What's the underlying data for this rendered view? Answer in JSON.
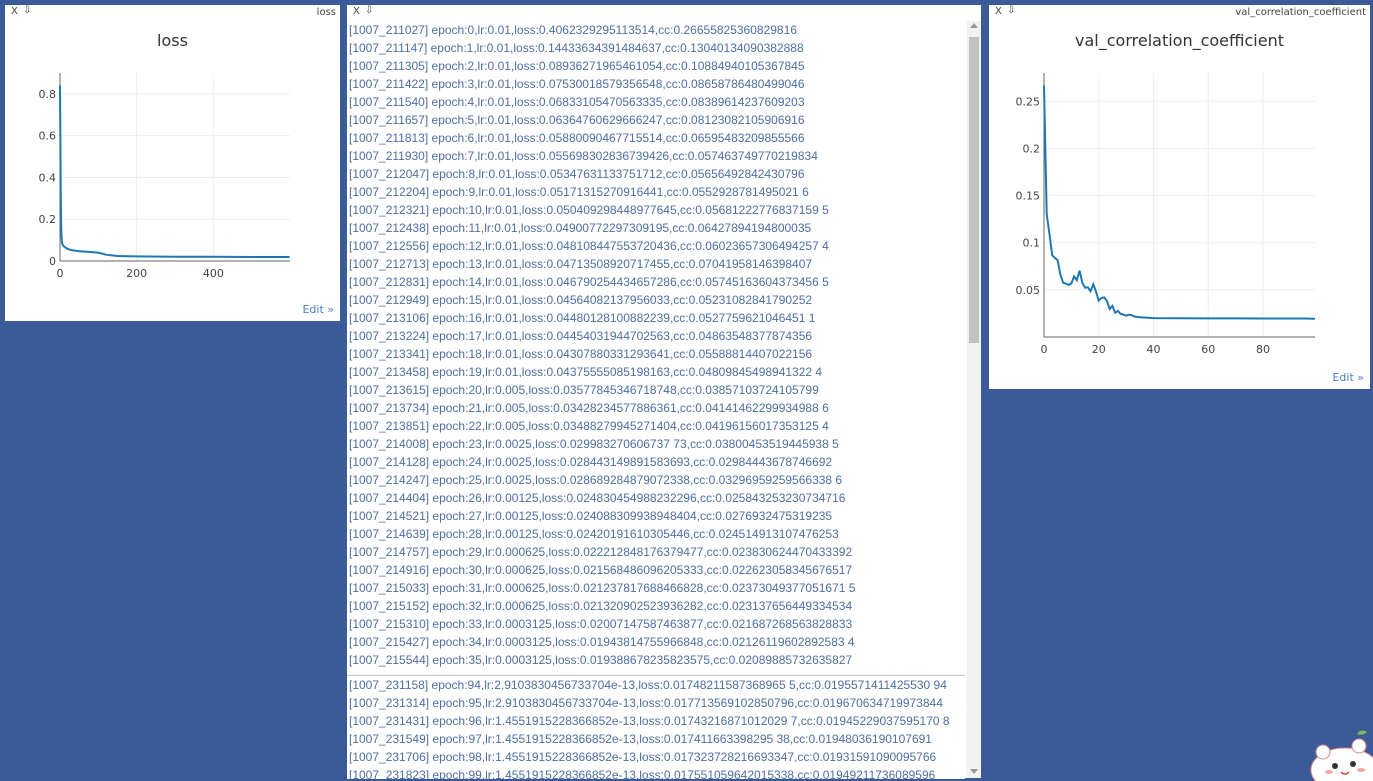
{
  "panes": {
    "close_glyph": "X",
    "pin_glyph": "⇩",
    "edit_label": "Edit »"
  },
  "loss_pane": {
    "name": "loss"
  },
  "val_pane": {
    "name": "val_correlation_coefficient"
  },
  "charts": {
    "chart_data": [
      {
        "type": "line",
        "title": "loss",
        "xlabel": "",
        "ylabel": "",
        "xlim": [
          0,
          600
        ],
        "ylim": [
          0,
          0.9
        ],
        "xticks": [
          0,
          200,
          400
        ],
        "yticks": [
          0,
          0.2,
          0.4,
          0.6,
          0.8
        ],
        "x": [
          0,
          1,
          2,
          3,
          4,
          5,
          6,
          8,
          10,
          15,
          20,
          30,
          50,
          80,
          100,
          120,
          150,
          200,
          300,
          400,
          500,
          599
        ],
        "y": [
          0.84,
          0.55,
          0.3,
          0.18,
          0.12,
          0.095,
          0.082,
          0.075,
          0.07,
          0.063,
          0.058,
          0.052,
          0.047,
          0.043,
          0.04,
          0.03,
          0.024,
          0.022,
          0.02,
          0.02,
          0.019,
          0.019
        ],
        "grid": true,
        "color": "#1f77b4"
      },
      {
        "type": "line",
        "title": "val_correlation_coefficient",
        "xlabel": "",
        "ylabel": "",
        "xlim": [
          0,
          99
        ],
        "ylim": [
          0,
          0.28
        ],
        "xticks": [
          0,
          20,
          40,
          60,
          80
        ],
        "yticks": [
          0.05,
          0.1,
          0.15,
          0.2,
          0.25
        ],
        "x": [
          0,
          1,
          2,
          3,
          4,
          5,
          6,
          7,
          8,
          9,
          10,
          11,
          12,
          13,
          14,
          15,
          16,
          17,
          18,
          19,
          20,
          21,
          22,
          23,
          24,
          25,
          26,
          27,
          28,
          29,
          30,
          31,
          32,
          33,
          34,
          35,
          40,
          50,
          60,
          70,
          80,
          90,
          94,
          95,
          96,
          97,
          98,
          99
        ],
        "y": [
          0.2666,
          0.1304,
          0.1088,
          0.0866,
          0.0839,
          0.0812,
          0.066,
          0.0575,
          0.0566,
          0.0553,
          0.0568,
          0.0643,
          0.0602,
          0.0704,
          0.0575,
          0.0523,
          0.0528,
          0.0486,
          0.0559,
          0.0481,
          0.0386,
          0.0414,
          0.042,
          0.038,
          0.0298,
          0.033,
          0.0258,
          0.0277,
          0.0245,
          0.0238,
          0.0226,
          0.0237,
          0.0231,
          0.0217,
          0.0213,
          0.0209,
          0.02,
          0.0198,
          0.0197,
          0.0197,
          0.0196,
          0.0196,
          0.0196,
          0.0197,
          0.0195,
          0.0195,
          0.0193,
          0.0195
        ],
        "grid": true,
        "color": "#1f77b4"
      }
    ]
  },
  "log": {
    "top_lines": [
      "[1007_211027] epoch:0,lr:0.01,loss:0.4062329295113514,cc:0.26655825360829816",
      "[1007_211147] epoch:1,lr:0.01,loss:0.14433634391484637,cc:0.13040134090382888",
      "[1007_211305] epoch:2,lr:0.01,loss:0.08936271965461054,cc:0.10884940105367845",
      "[1007_211422] epoch:3,lr:0.01,loss:0.07530018579356548,cc:0.08658786480499046",
      "[1007_211540] epoch:4,lr:0.01,loss:0.06833105470563335,cc:0.08389614237609203",
      "[1007_211657] epoch:5,lr:0.01,loss:0.06364760629666247,cc:0.08123082105906916",
      "[1007_211813] epoch:6,lr:0.01,loss:0.05880090467715514,cc:0.06595483209855566",
      "[1007_211930] epoch:7,lr:0.01,loss:0.055698302836739426,cc:0.057463749770219834",
      "[1007_212047] epoch:8,lr:0.01,loss:0.05347631133751712,cc:0.05656492842430796",
      "[1007_212204] epoch:9,lr:0.01,loss:0.05171315270916441,cc:0.0552928781495021 6",
      "[1007_212321] epoch:10,lr:0.01,loss:0.050409298448977645,cc:0.05681222776837159 5",
      "[1007_212438] epoch:11,lr:0.01,loss:0.04900772297309195,cc:0.06427894194800035",
      "[1007_212556] epoch:12,lr:0.01,loss:0.048108447553720436,cc:0.06023657306494257 4",
      "[1007_212713] epoch:13,lr:0.01,loss:0.04713508920717455,cc:0.07041958146398407",
      "[1007_212831] epoch:14,lr:0.01,loss:0.046790254434657286,cc:0.05745163604373456 5",
      "[1007_212949] epoch:15,lr:0.01,loss:0.04564082137956033,cc:0.05231082841790252",
      "[1007_213106] epoch:16,lr:0.01,loss:0.04480128100882239,cc:0.0527759621046451 1",
      "[1007_213224] epoch:17,lr:0.01,loss:0.04454031944702563,cc:0.04863548377874356",
      "[1007_213341] epoch:18,lr:0.01,loss:0.04307880331293641,cc:0.05588814407022156",
      "[1007_213458] epoch:19,lr:0.01,loss:0.04375555085198163,cc:0.04809845498941322 4",
      "[1007_213615] epoch:20,lr:0.005,loss:0.03577845346718748,cc:0.03857103724105799",
      "[1007_213734] epoch:21,lr:0.005,loss:0.03428234577886361,cc:0.04141462299934988 6",
      "[1007_213851] epoch:22,lr:0.005,loss:0.03488279945271404,cc:0.04196156017353125 4",
      "[1007_214008] epoch:23,lr:0.0025,loss:0.029983270606737 73,cc:0.03800453519445938 5",
      "[1007_214128] epoch:24,lr:0.0025,loss:0.028443149891583693,cc:0.02984443678746692",
      "[1007_214247] epoch:25,lr:0.0025,loss:0.028689284879072338,cc:0.03296959259566338 6",
      "[1007_214404] epoch:26,lr:0.00125,loss:0.024830454988232296,cc:0.025843253230734716",
      "[1007_214521] epoch:27,lr:0.00125,loss:0.024088309938948404,cc:0.0276932475319235",
      "[1007_214639] epoch:28,lr:0.00125,loss:0.02420191610305446,cc:0.024514913107476253",
      "[1007_214757] epoch:29,lr:0.000625,loss:0.022212848176379477,cc:0.023830624470433392",
      "[1007_214916] epoch:30,lr:0.000625,loss:0.021568486096205333,cc:0.022623058345676517",
      "[1007_215033] epoch:31,lr:0.000625,loss:0.021237817688466828,cc:0.02373049377051671 5",
      "[1007_215152] epoch:32,lr:0.000625,loss:0.021320902523936282,cc:0.023137656449334534",
      "[1007_215310] epoch:33,lr:0.0003125,loss:0.02007147587463877,cc:0.021687268563828833",
      "[1007_215427] epoch:34,lr:0.0003125,loss:0.01943814755966848,cc:0.02126119602892583 4",
      "[1007_215544] epoch:35,lr:0.0003125,loss:0.019388678235823575,cc:0.02089885732635827"
    ],
    "bottom_lines": [
      "[1007_231158] epoch:94,lr:2.9103830456733704e-13,loss:0.01748211587368965 5,cc:0.0195571411425530 94",
      "[1007_231314] epoch:95,lr:2.9103830456733704e-13,loss:0.017713569102850796,cc:0.019670634719973844",
      "[1007_231431] epoch:96,lr:1.4551915228366852e-13,loss:0.01743216871012029 7,cc:0.01945229037595170 8",
      "[1007_231549] epoch:97,lr:1.4551915228366852e-13,loss:0.017411663398295 38,cc:0.01948036190107691",
      "[1007_231706] epoch:98,lr:1.4551915228366852e-13,loss:0.017323728216693347,cc:0.01931591090095766",
      "[1007_231823] epoch:99,lr:1.4551915228366852e-13,loss:0.017551059642015338,cc:0.01949211736089596"
    ]
  }
}
